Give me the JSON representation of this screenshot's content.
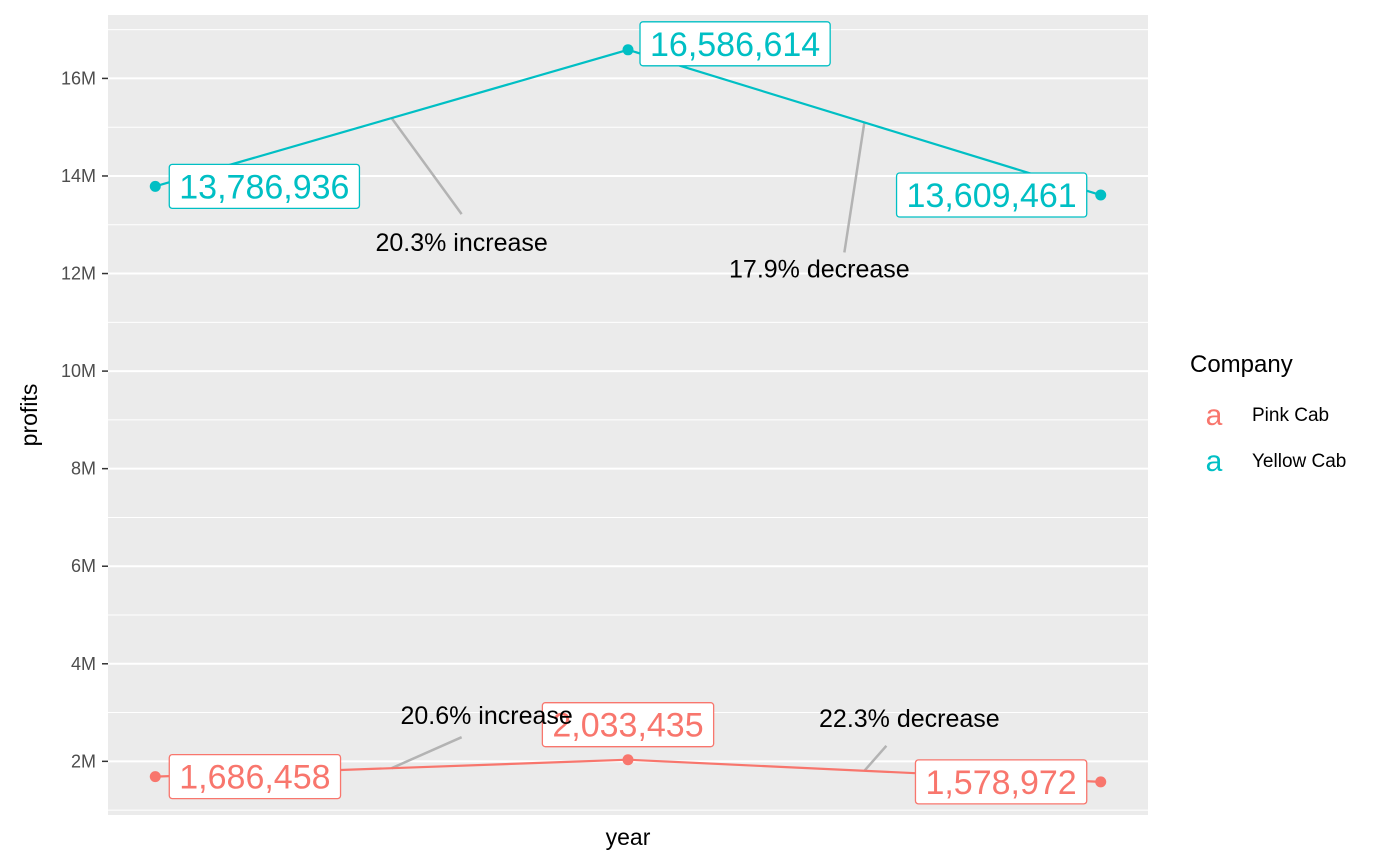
{
  "chart_data": {
    "type": "line",
    "xlabel": "year",
    "ylabel": "profits",
    "ylim": [
      900000,
      17300000
    ],
    "y_ticks": [
      {
        "value": 2000000,
        "label": "2M"
      },
      {
        "value": 4000000,
        "label": "4M"
      },
      {
        "value": 6000000,
        "label": "6M"
      },
      {
        "value": 8000000,
        "label": "8M"
      },
      {
        "value": 10000000,
        "label": "10M"
      },
      {
        "value": 12000000,
        "label": "12M"
      },
      {
        "value": 14000000,
        "label": "14M"
      },
      {
        "value": 16000000,
        "label": "16M"
      }
    ],
    "x_positions": [
      1,
      2,
      3
    ],
    "xlim": [
      0.9,
      3.1
    ],
    "grid": true,
    "legend_position": "right",
    "series": [
      {
        "name": "Pink Cab",
        "color": "#F8766D",
        "values": [
          1686458,
          2033435,
          1578972
        ],
        "labels": [
          "1,686,458",
          "2,033,435",
          "1,578,972"
        ]
      },
      {
        "name": "Yellow Cab",
        "color": "#00BFC4",
        "values": [
          13786936,
          16586614,
          13609461
        ],
        "labels": [
          "13,786,936",
          "16,586,614",
          "13,609,461"
        ]
      }
    ],
    "annotations": [
      {
        "series": "Yellow Cab",
        "segment": 0,
        "text": "20.3% increase",
        "placement": "below"
      },
      {
        "series": "Yellow Cab",
        "segment": 1,
        "text": "17.9% decrease",
        "placement": "below"
      },
      {
        "series": "Pink Cab",
        "segment": 0,
        "text": "20.6% increase",
        "placement": "above"
      },
      {
        "series": "Pink Cab",
        "segment": 1,
        "text": "22.3% decrease",
        "placement": "above"
      }
    ],
    "legend": {
      "title": "Company",
      "key_glyph": "a",
      "items": [
        {
          "label": "Pink Cab",
          "color": "#F8766D"
        },
        {
          "label": "Yellow Cab",
          "color": "#00BFC4"
        }
      ]
    }
  }
}
